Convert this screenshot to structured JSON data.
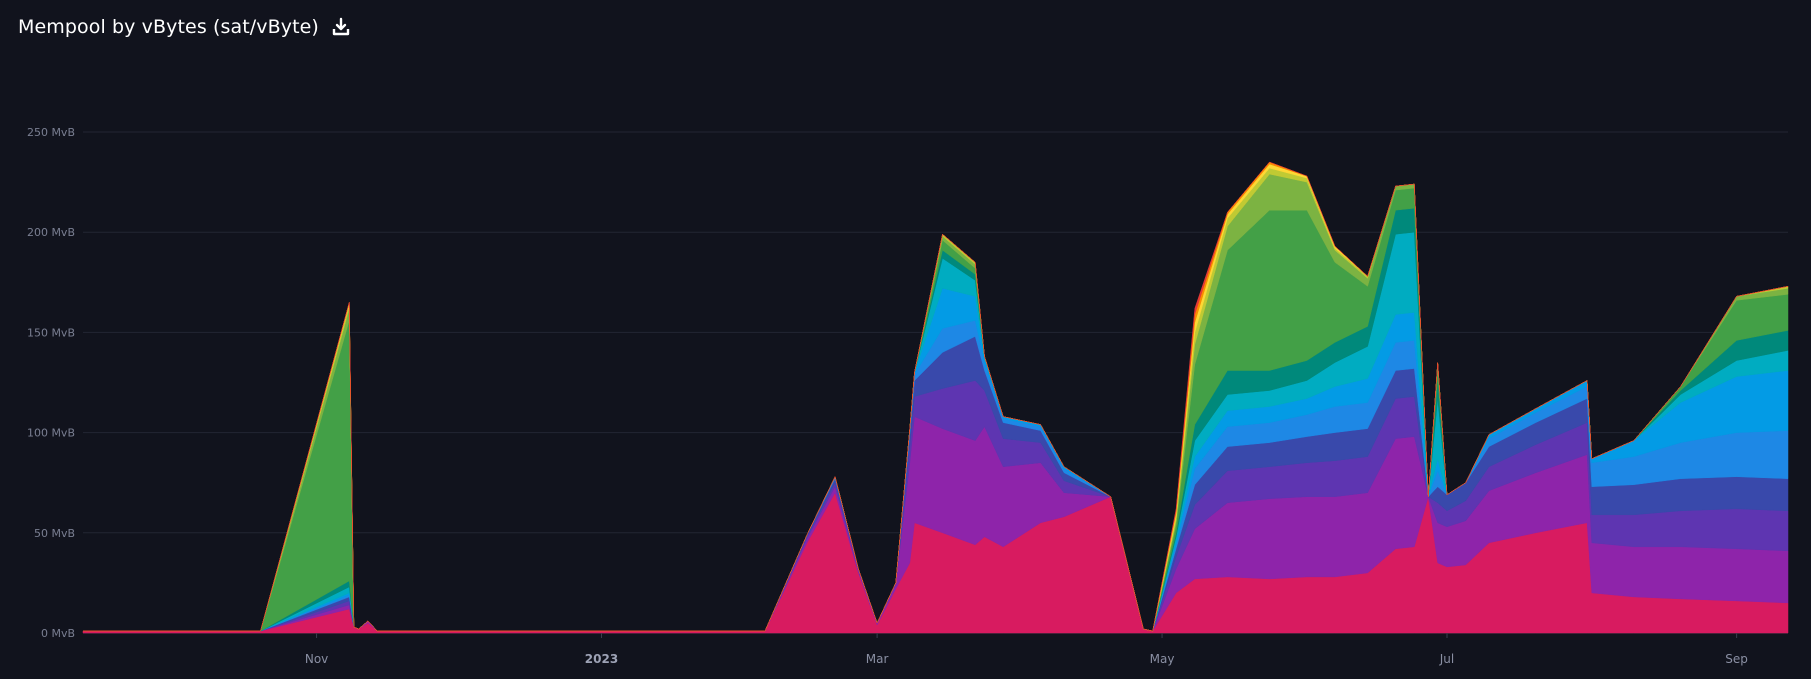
{
  "header": {
    "title": "Mempool by vBytes (sat/vByte)",
    "download_icon": "download-icon"
  },
  "chart_data": {
    "type": "area",
    "stacked": true,
    "title": "Mempool by vBytes (sat/vByte)",
    "xlabel": "",
    "ylabel": "",
    "ylim": [
      0,
      250
    ],
    "y_unit": "MvB",
    "y_ticks": [
      {
        "value": 0,
        "label": "0 MvB"
      },
      {
        "value": 50,
        "label": "50 MvB"
      },
      {
        "value": 100,
        "label": "100 MvB"
      },
      {
        "value": 150,
        "label": "150 MvB"
      },
      {
        "value": 200,
        "label": "200 MvB"
      },
      {
        "value": 250,
        "label": "250 MvB"
      }
    ],
    "x_ticks": [
      {
        "date": "2022-11-01",
        "label": "Nov",
        "bold": false
      },
      {
        "date": "2023-01-01",
        "label": "2023",
        "bold": true
      },
      {
        "date": "2023-03-01",
        "label": "Mar",
        "bold": false
      },
      {
        "date": "2023-05-01",
        "label": "May",
        "bold": false
      },
      {
        "date": "2023-07-01",
        "label": "Jul",
        "bold": false
      },
      {
        "date": "2023-09-01",
        "label": "Sep",
        "bold": false
      }
    ],
    "grid": true,
    "x": [
      "2022-09-12",
      "2022-10-01",
      "2022-10-20",
      "2022-11-08",
      "2022-11-09",
      "2022-11-10",
      "2022-11-12",
      "2022-11-14",
      "2022-11-20",
      "2022-12-05",
      "2022-12-20",
      "2023-01-10",
      "2023-02-05",
      "2023-02-14",
      "2023-02-20",
      "2023-02-25",
      "2023-03-01",
      "2023-03-05",
      "2023-03-08",
      "2023-03-09",
      "2023-03-15",
      "2023-03-22",
      "2023-03-24",
      "2023-03-28",
      "2023-04-05",
      "2023-04-10",
      "2023-04-20",
      "2023-04-27",
      "2023-04-29",
      "2023-05-04",
      "2023-05-08",
      "2023-05-15",
      "2023-05-24",
      "2023-06-01",
      "2023-06-07",
      "2023-06-14",
      "2023-06-20",
      "2023-06-24",
      "2023-06-27",
      "2023-06-29",
      "2023-07-01",
      "2023-07-05",
      "2023-07-10",
      "2023-07-20",
      "2023-07-31",
      "2023-08-01",
      "2023-08-10",
      "2023-08-20",
      "2023-09-01",
      "2023-09-12"
    ],
    "series": [
      {
        "color": "#d81b60",
        "values": [
          1,
          1,
          1,
          12,
          3,
          2,
          5,
          1,
          1,
          1,
          1,
          1,
          1,
          45,
          70,
          30,
          4,
          22,
          35,
          55,
          50,
          44,
          48,
          43,
          55,
          58,
          68,
          2,
          1,
          20,
          27,
          28,
          27,
          28,
          28,
          30,
          42,
          43,
          68,
          35,
          33,
          34,
          45,
          50,
          55,
          20,
          18,
          17,
          16,
          15
        ]
      },
      {
        "color": "#8e24aa",
        "values": [
          0,
          0,
          0,
          2,
          0,
          0,
          1,
          0,
          0,
          0,
          0,
          0,
          0,
          2,
          3,
          1,
          1,
          2,
          50,
          53,
          52,
          52,
          55,
          40,
          30,
          12,
          0,
          0,
          0,
          12,
          25,
          37,
          40,
          40,
          40,
          40,
          55,
          55,
          0,
          20,
          20,
          22,
          26,
          30,
          34,
          25,
          25,
          26,
          26,
          26
        ]
      },
      {
        "color": "#5e35b1",
        "values": [
          0,
          0,
          0,
          2,
          0,
          0,
          0,
          0,
          0,
          0,
          0,
          0,
          0,
          1,
          2,
          1,
          0,
          1,
          8,
          10,
          20,
          30,
          18,
          14,
          10,
          6,
          0,
          0,
          0,
          6,
          12,
          16,
          16,
          17,
          18,
          18,
          20,
          20,
          0,
          10,
          8,
          10,
          12,
          14,
          16,
          14,
          16,
          18,
          20,
          20
        ]
      },
      {
        "color": "#3949ab",
        "values": [
          0,
          0,
          0,
          2,
          0,
          0,
          0,
          0,
          0,
          0,
          0,
          0,
          0,
          1,
          2,
          0,
          0,
          0,
          6,
          8,
          18,
          22,
          10,
          8,
          6,
          4,
          0,
          0,
          0,
          4,
          10,
          12,
          12,
          13,
          14,
          14,
          14,
          14,
          0,
          8,
          8,
          9,
          10,
          11,
          12,
          14,
          15,
          16,
          16,
          16
        ]
      },
      {
        "color": "#1e88e5",
        "values": [
          0,
          0,
          0,
          1,
          0,
          0,
          0,
          0,
          0,
          0,
          0,
          0,
          0,
          0,
          1,
          0,
          0,
          0,
          2,
          3,
          12,
          8,
          4,
          2,
          2,
          2,
          0,
          0,
          0,
          2,
          8,
          10,
          10,
          11,
          13,
          13,
          14,
          14,
          0,
          8,
          0,
          0,
          4,
          5,
          6,
          12,
          14,
          18,
          22,
          24
        ]
      },
      {
        "color": "#039be5",
        "values": [
          0,
          0,
          0,
          1,
          0,
          0,
          0,
          0,
          0,
          0,
          0,
          0,
          0,
          0,
          0,
          0,
          0,
          0,
          1,
          1,
          20,
          12,
          2,
          1,
          1,
          1,
          0,
          0,
          0,
          2,
          6,
          8,
          8,
          8,
          10,
          12,
          14,
          14,
          0,
          6,
          0,
          0,
          2,
          2,
          3,
          2,
          8,
          20,
          28,
          30
        ]
      },
      {
        "color": "#00acc1",
        "values": [
          0,
          0,
          0,
          3,
          0,
          0,
          0,
          0,
          0,
          0,
          0,
          0,
          0,
          0,
          0,
          0,
          0,
          0,
          0,
          0,
          15,
          8,
          1,
          0,
          0,
          0,
          0,
          0,
          0,
          2,
          8,
          8,
          8,
          9,
          12,
          16,
          40,
          40,
          0,
          30,
          0,
          0,
          0,
          0,
          0,
          0,
          0,
          4,
          8,
          10
        ]
      },
      {
        "color": "#00897b",
        "values": [
          0,
          0,
          0,
          3,
          0,
          0,
          0,
          0,
          0,
          0,
          0,
          0,
          0,
          0,
          0,
          0,
          0,
          0,
          0,
          0,
          4,
          3,
          0,
          0,
          0,
          0,
          0,
          0,
          0,
          2,
          8,
          12,
          10,
          10,
          10,
          10,
          12,
          12,
          0,
          10,
          0,
          0,
          0,
          0,
          0,
          0,
          0,
          2,
          10,
          10
        ]
      },
      {
        "color": "#43a047",
        "values": [
          0,
          0,
          0,
          130,
          0,
          0,
          0,
          0,
          0,
          0,
          0,
          0,
          0,
          0,
          0,
          0,
          0,
          0,
          0,
          0,
          5,
          3,
          0,
          0,
          0,
          0,
          0,
          0,
          0,
          4,
          30,
          60,
          80,
          75,
          40,
          20,
          10,
          10,
          0,
          6,
          0,
          0,
          0,
          0,
          0,
          0,
          0,
          2,
          20,
          18
        ]
      },
      {
        "color": "#7cb342",
        "values": [
          0,
          0,
          0,
          6,
          0,
          0,
          0,
          0,
          0,
          0,
          0,
          0,
          0,
          0,
          0,
          0,
          0,
          0,
          0,
          0,
          2,
          2,
          0,
          0,
          0,
          0,
          0,
          0,
          0,
          2,
          10,
          12,
          18,
          14,
          6,
          4,
          2,
          2,
          0,
          2,
          0,
          0,
          0,
          0,
          0,
          0,
          0,
          0,
          2,
          3
        ]
      },
      {
        "color": "#c0ca33",
        "values": [
          0,
          0,
          0,
          2,
          0,
          0,
          0,
          0,
          0,
          0,
          0,
          0,
          0,
          0,
          0,
          0,
          0,
          0,
          0,
          0,
          1,
          1,
          0,
          0,
          0,
          0,
          0,
          0,
          0,
          2,
          6,
          4,
          3,
          2,
          1,
          1,
          0,
          0,
          0,
          0,
          0,
          0,
          0,
          0,
          0,
          0,
          0,
          0,
          0,
          1
        ]
      },
      {
        "color": "#fdd835",
        "values": [
          0,
          0,
          0,
          1,
          0,
          0,
          0,
          0,
          0,
          0,
          0,
          0,
          0,
          0,
          0,
          0,
          0,
          0,
          0,
          0,
          0,
          0,
          0,
          0,
          0,
          0,
          0,
          0,
          0,
          2,
          5,
          2,
          2,
          1,
          1,
          0,
          0,
          0,
          0,
          0,
          0,
          0,
          0,
          0,
          0,
          0,
          0,
          0,
          0,
          0
        ]
      },
      {
        "color": "#fb8c00",
        "values": [
          0,
          0,
          0,
          0,
          0,
          0,
          0,
          0,
          0,
          0,
          0,
          0,
          0,
          0,
          0,
          0,
          0,
          0,
          0,
          0,
          0,
          0,
          0,
          0,
          0,
          0,
          0,
          0,
          0,
          1,
          4,
          1,
          1,
          0,
          0,
          0,
          0,
          0,
          0,
          0,
          0,
          0,
          0,
          0,
          0,
          0,
          0,
          0,
          0,
          0
        ]
      },
      {
        "color": "#e53935",
        "values": [
          0,
          0,
          0,
          0,
          0,
          0,
          0,
          0,
          0,
          0,
          0,
          0,
          0,
          0,
          0,
          0,
          0,
          0,
          0,
          0,
          0,
          0,
          0,
          0,
          0,
          0,
          0,
          0,
          0,
          1,
          3,
          0,
          0,
          0,
          0,
          0,
          0,
          0,
          0,
          0,
          0,
          0,
          0,
          0,
          0,
          0,
          0,
          0,
          0,
          0
        ]
      }
    ]
  },
  "colors": {
    "background": "#11131d",
    "grid": "#232633",
    "axis": "#3a3e4d"
  }
}
